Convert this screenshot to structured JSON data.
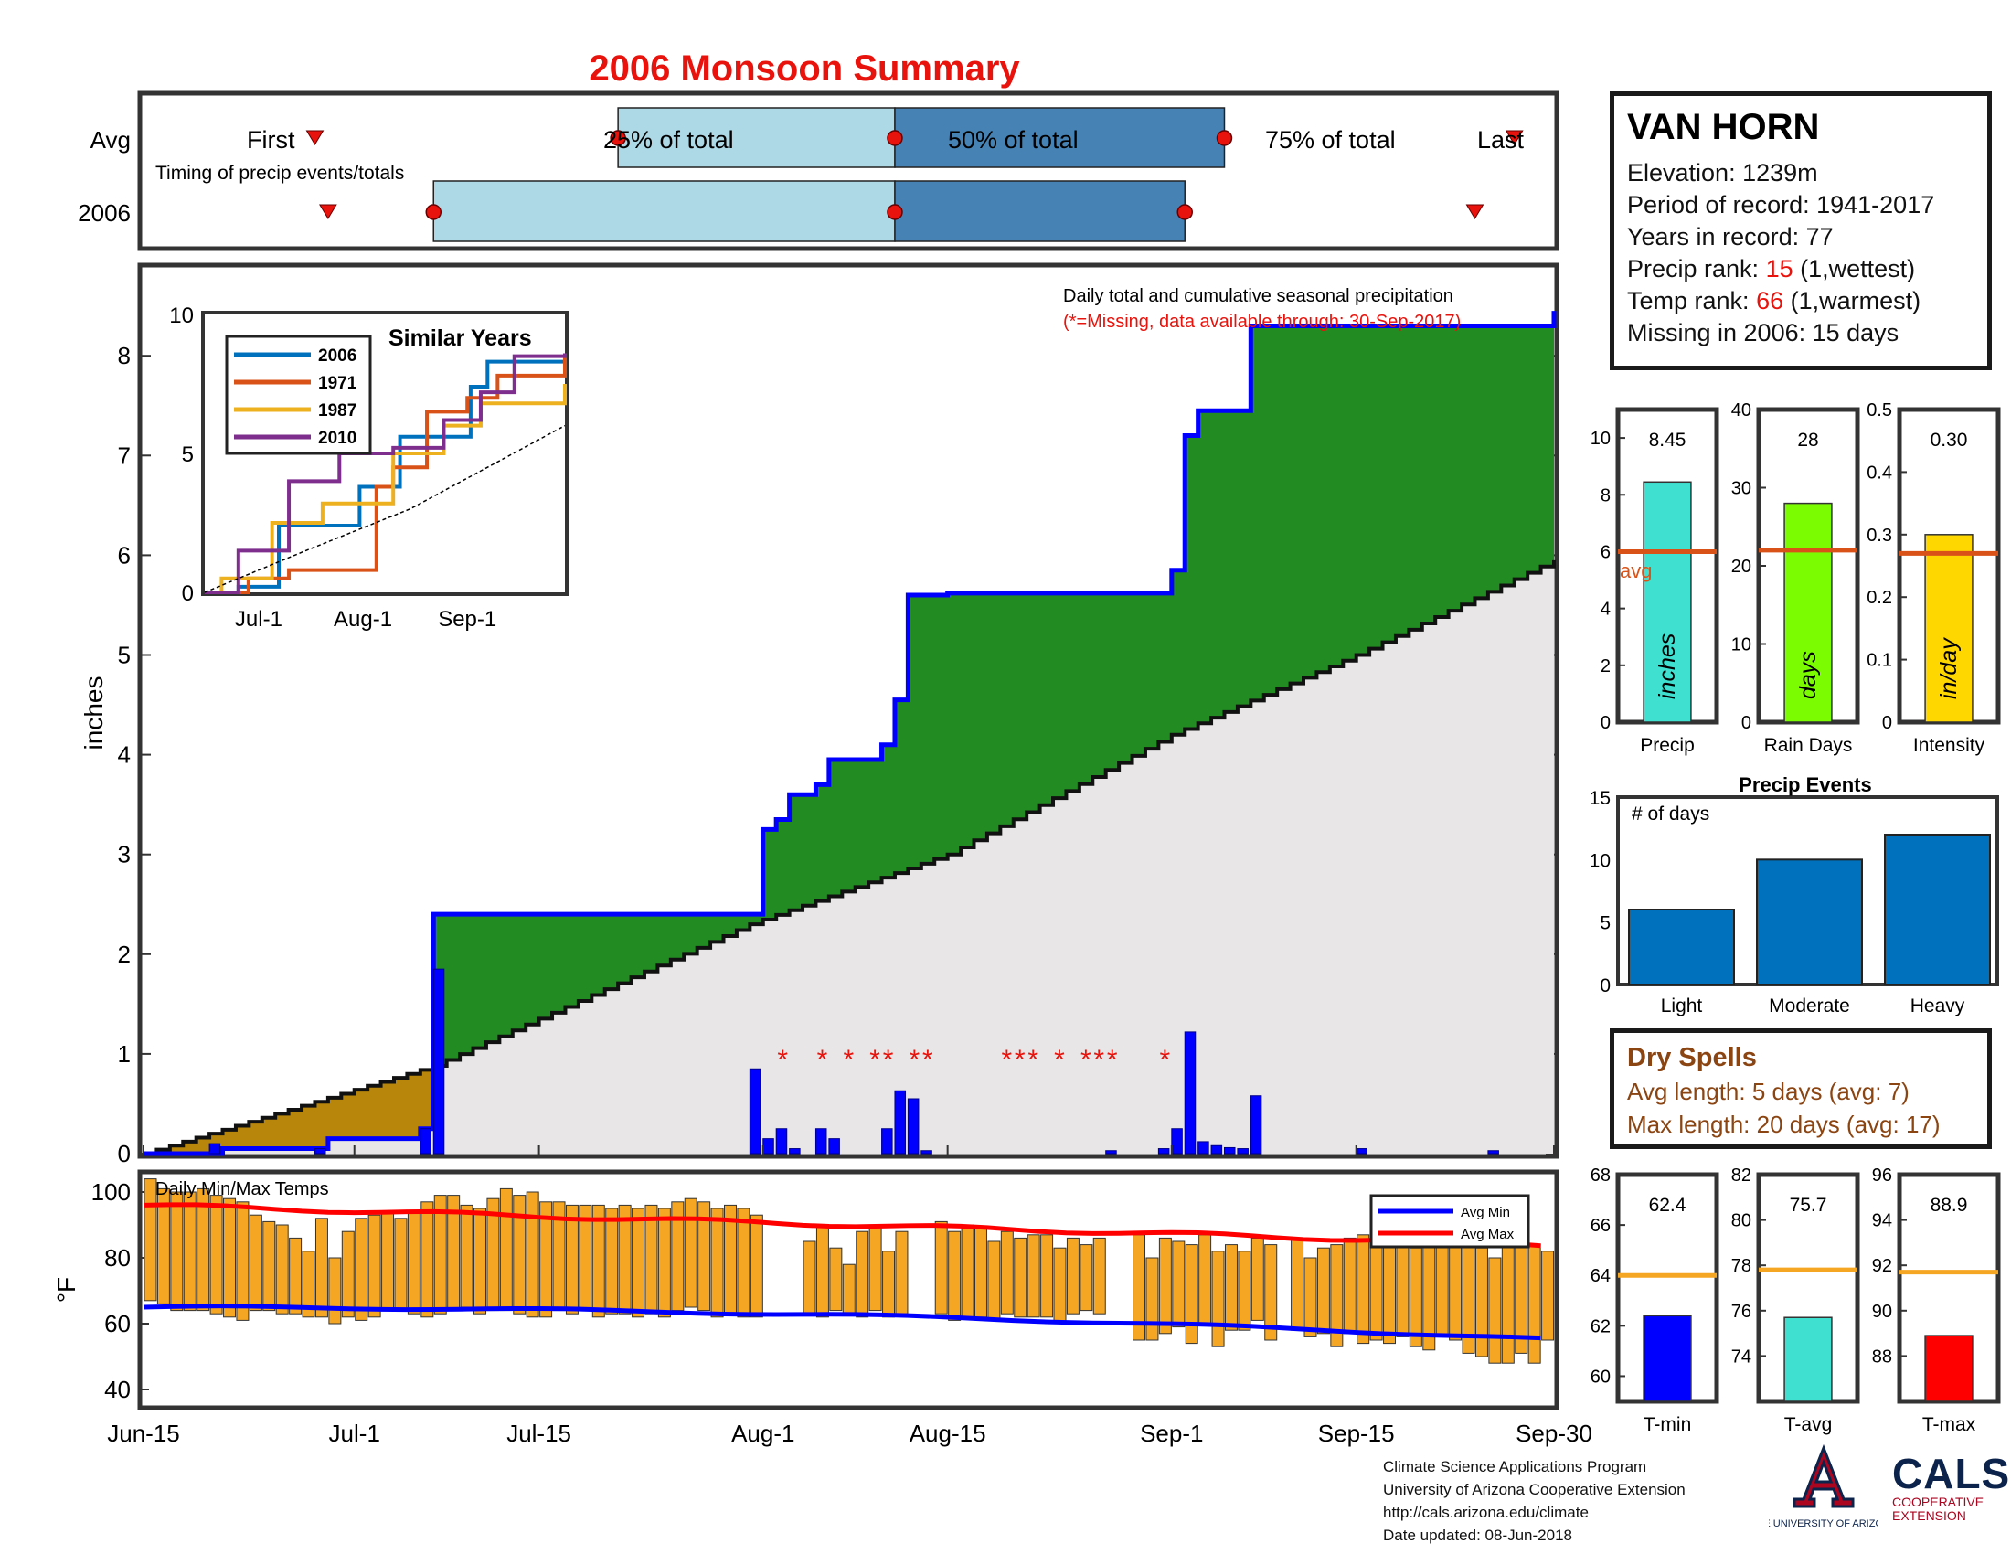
{
  "title": "2006 Monsoon Summary",
  "timing": {
    "row_labels": [
      "Avg",
      "2006"
    ],
    "caption": "Timing of precip events/totals",
    "labels": {
      "first": "First",
      "p25": "25% of total",
      "p50": "50% of total",
      "p75": "75% of total",
      "last": "Last"
    },
    "avg": {
      "first": "2006-06-28",
      "p25": "2006-07-21",
      "p50": "2006-08-11",
      "p75": "2006-09-05",
      "last": "2006-09-27"
    },
    "year": {
      "first": "2006-06-29",
      "p25": "2006-07-07",
      "p50": "2006-08-11",
      "p75": "2006-09-02",
      "last": "2006-09-24"
    }
  },
  "station": {
    "name": "VAN HORN",
    "elevation_label": "Elevation: 1239m",
    "period_label": "Period of record: 1941-2017",
    "years_label": "Years in record: 77",
    "precip_rank_prefix": "Precip rank: ",
    "precip_rank": "15",
    "precip_rank_suffix": " (1,wettest)",
    "temp_rank_prefix": "Temp rank: ",
    "temp_rank": "66",
    "temp_rank_suffix": " (1,warmest)",
    "missing_label": "Missing in 2006: 15 days"
  },
  "main_chart": {
    "note1": "Daily total and cumulative seasonal precipitation",
    "note2": "(*=Missing, data available through: 30-Sep-2017)",
    "ylabel": "inches",
    "x_tick_labels": [
      "Jun-15",
      "Jul-1",
      "Jul-15",
      "Aug-1",
      "Aug-15",
      "Sep-1",
      "Sep-15",
      "Sep-30"
    ]
  },
  "similar_years": {
    "title": "Similar Years",
    "x_tick_labels": [
      "Jul-1",
      "Aug-1",
      "Sep-1"
    ]
  },
  "summary_bars": [
    {
      "label": "Precip",
      "unit": "inches",
      "value": "8.45"
    },
    {
      "label": "Rain Days",
      "unit": "days",
      "value": "28"
    },
    {
      "label": "Intensity",
      "unit": "in/day",
      "value": "0.30"
    }
  ],
  "avg_label": "avg",
  "precip_events": {
    "title": "Precip Events",
    "ylabel": "# of days",
    "categories": [
      "Light",
      "Moderate",
      "Heavy"
    ]
  },
  "dry_spells": {
    "title": "Dry Spells",
    "avg_line": "Avg length: 5 days (avg: 7)",
    "max_line": "Max length: 20 days (avg: 17)"
  },
  "temp_chart": {
    "title": "Daily Min/Max Temps",
    "ylabel": "°F",
    "legend": [
      "Avg Min",
      "Avg Max"
    ]
  },
  "temp_bars": [
    {
      "label": "T-min",
      "value": "62.4"
    },
    {
      "label": "T-avg",
      "value": "75.7"
    },
    {
      "label": "T-max",
      "value": "88.9"
    }
  ],
  "footer": {
    "line1": "Climate Science Applications Program",
    "line2": "University of Arizona Cooperative Extension",
    "line3": "http://cals.arizona.edu/climate",
    "line4": "Date updated: 08-Jun-2018"
  },
  "logos": {
    "ua": "THE UNIVERSITY OF ARIZONA",
    "cals": "CALS",
    "cals_sub1": "COOPERATIVE",
    "cals_sub2": "EXTENSION"
  },
  "colors": {
    "title": "#e8130c",
    "green": "#228b22",
    "blue_line": "#0000ff",
    "gray_fill": "#e6e6e6",
    "brown_fill": "#b8860b",
    "orange": "#f5a623",
    "bar_blue": "#0072bd"
  },
  "chart_data": [
    {
      "type": "area",
      "name": "cumulative precipitation",
      "x_range": [
        "2006-06-15",
        "2006-09-30"
      ],
      "ylim": [
        0,
        8.5
      ],
      "y_ticks": [
        0,
        1,
        2,
        3,
        4,
        5,
        6,
        7,
        8
      ],
      "series": [
        {
          "name": "2006 cumulative",
          "x": [
            "2006-06-15",
            "2006-06-20",
            "2006-06-21",
            "2006-06-28",
            "2006-06-29",
            "2006-07-03",
            "2006-07-06",
            "2006-07-07",
            "2006-07-31",
            "2006-08-01",
            "2006-08-02",
            "2006-08-03",
            "2006-08-05",
            "2006-08-06",
            "2006-08-10",
            "2006-08-11",
            "2006-08-12",
            "2006-08-15",
            "2006-08-29",
            "2006-09-01",
            "2006-09-02",
            "2006-09-03",
            "2006-09-06",
            "2006-09-07",
            "2006-09-30"
          ],
          "values": [
            0,
            0,
            0.05,
            0.05,
            0.15,
            0.15,
            0.25,
            2.4,
            2.4,
            3.25,
            3.35,
            3.6,
            3.7,
            3.95,
            4.1,
            4.55,
            5.6,
            5.62,
            5.62,
            5.85,
            7.2,
            7.45,
            7.45,
            8.3,
            8.45
          ]
        },
        {
          "name": "Avg cumulative",
          "x": [
            "2006-06-15",
            "2006-07-07",
            "2006-07-31",
            "2006-08-15",
            "2006-09-01",
            "2006-09-15",
            "2006-09-30"
          ],
          "values": [
            0,
            0.88,
            2.3,
            3.0,
            4.2,
            5.0,
            5.95
          ]
        }
      ]
    },
    {
      "type": "bar",
      "name": "daily precipitation",
      "x": [
        "2006-06-20",
        "2006-06-28",
        "2006-07-06",
        "2006-07-07",
        "2006-07-31",
        "2006-08-01",
        "2006-08-02",
        "2006-08-03",
        "2006-08-05",
        "2006-08-06",
        "2006-08-10",
        "2006-08-11",
        "2006-08-12",
        "2006-08-13",
        "2006-08-27",
        "2006-08-31",
        "2006-09-01",
        "2006-09-02",
        "2006-09-03",
        "2006-09-04",
        "2006-09-05",
        "2006-09-06",
        "2006-09-07",
        "2006-09-15",
        "2006-09-25"
      ],
      "values": [
        0.1,
        0.05,
        0.25,
        1.85,
        0.85,
        0.15,
        0.25,
        0.05,
        0.25,
        0.15,
        0.25,
        0.63,
        0.55,
        0.03,
        0.03,
        0.05,
        0.25,
        1.22,
        0.12,
        0.08,
        0.06,
        0.05,
        0.58,
        0.05,
        0.03
      ]
    },
    {
      "type": "scatter",
      "name": "missing days",
      "x": [
        "2006-08-02",
        "2006-08-05",
        "2006-08-07",
        "2006-08-09",
        "2006-08-10",
        "2006-08-12",
        "2006-08-13",
        "2006-08-19",
        "2006-08-20",
        "2006-08-21",
        "2006-08-23",
        "2006-08-25",
        "2006-08-26",
        "2006-08-27",
        "2006-08-31"
      ],
      "values": [
        1,
        1,
        1,
        1,
        1,
        1,
        1,
        1,
        1,
        1,
        1,
        1,
        1,
        1,
        1
      ]
    },
    {
      "type": "line",
      "name": "similar years",
      "ylim": [
        0,
        10
      ],
      "y_ticks": [
        0,
        5,
        10
      ],
      "series": [
        {
          "name": "2006",
          "color": "#0072bd",
          "x": [
            "06-15",
            "06-25",
            "07-07",
            "07-31",
            "08-12",
            "09-02",
            "09-07",
            "09-30"
          ],
          "values": [
            0,
            0.2,
            2.4,
            3.8,
            5.6,
            7.4,
            8.3,
            8.45
          ]
        },
        {
          "name": "1971",
          "color": "#d95319",
          "x": [
            "06-15",
            "06-28",
            "07-10",
            "08-05",
            "08-10",
            "08-20",
            "09-01",
            "09-10",
            "09-30"
          ],
          "values": [
            0,
            0.5,
            0.8,
            3.8,
            4.5,
            6.5,
            7.0,
            7.8,
            8.6
          ]
        },
        {
          "name": "1987",
          "color": "#edb120",
          "x": [
            "06-15",
            "06-20",
            "07-05",
            "07-20",
            "08-10",
            "08-25",
            "09-05",
            "09-30"
          ],
          "values": [
            0,
            0.5,
            2.5,
            3.2,
            5.0,
            6.0,
            6.8,
            7.5
          ]
        },
        {
          "name": "2010",
          "color": "#7e2f8e",
          "x": [
            "06-15",
            "06-25",
            "07-10",
            "07-25",
            "08-10",
            "08-25",
            "09-05",
            "09-15",
            "09-30"
          ],
          "values": [
            0,
            1.5,
            4.0,
            5.0,
            5.2,
            6.2,
            7.2,
            8.5,
            8.6
          ]
        },
        {
          "name": "avg",
          "color": "#000000",
          "x": [
            "06-15",
            "07-15",
            "08-15",
            "09-30"
          ],
          "values": [
            0,
            1.5,
            3.0,
            6.0
          ]
        }
      ]
    },
    {
      "type": "bar",
      "name": "seasonal summary",
      "panels": [
        {
          "label": "Precip",
          "value": 8.45,
          "avg": 6.0,
          "ylim": [
            0,
            11
          ],
          "y_ticks": [
            0,
            2,
            4,
            6,
            8,
            10
          ],
          "color": "#40e0d0"
        },
        {
          "label": "Rain Days",
          "value": 28,
          "avg": 22,
          "ylim": [
            0,
            40
          ],
          "y_ticks": [
            0,
            10,
            20,
            30,
            40
          ],
          "color": "#7cfc00"
        },
        {
          "label": "Intensity",
          "value": 0.3,
          "avg": 0.27,
          "ylim": [
            0,
            0.5
          ],
          "y_ticks": [
            0,
            0.1,
            0.2,
            0.3,
            0.4,
            0.5
          ],
          "color": "#ffd700"
        }
      ]
    },
    {
      "type": "bar",
      "name": "Precip Events",
      "categories": [
        "Light",
        "Moderate",
        "Heavy"
      ],
      "values": [
        6,
        10,
        12
      ],
      "ylim": [
        0,
        15
      ],
      "y_ticks": [
        0,
        5,
        10,
        15
      ]
    },
    {
      "type": "bar",
      "name": "Daily Min/Max Temps",
      "ylim": [
        35,
        105
      ],
      "y_ticks": [
        40,
        60,
        80,
        100
      ],
      "x_range": [
        "2006-06-15",
        "2006-09-30"
      ],
      "avg_min_endpoints": [
        65,
        54
      ],
      "avg_max_endpoints": [
        96,
        84
      ]
    },
    {
      "type": "bar",
      "name": "temperature summary",
      "panels": [
        {
          "label": "T-min",
          "value": 62.4,
          "avg": 64,
          "ylim": [
            59,
            68
          ],
          "y_ticks": [
            60,
            62,
            64,
            66,
            68
          ],
          "color": "#0000ff"
        },
        {
          "label": "T-avg",
          "value": 75.7,
          "avg": 77.8,
          "ylim": [
            72,
            82
          ],
          "y_ticks": [
            74,
            76,
            78,
            80,
            82
          ],
          "color": "#40e0d0"
        },
        {
          "label": "T-max",
          "value": 88.9,
          "avg": 91.7,
          "ylim": [
            86,
            96
          ],
          "y_ticks": [
            88,
            90,
            92,
            94,
            96
          ],
          "color": "#ff0000"
        }
      ]
    }
  ]
}
